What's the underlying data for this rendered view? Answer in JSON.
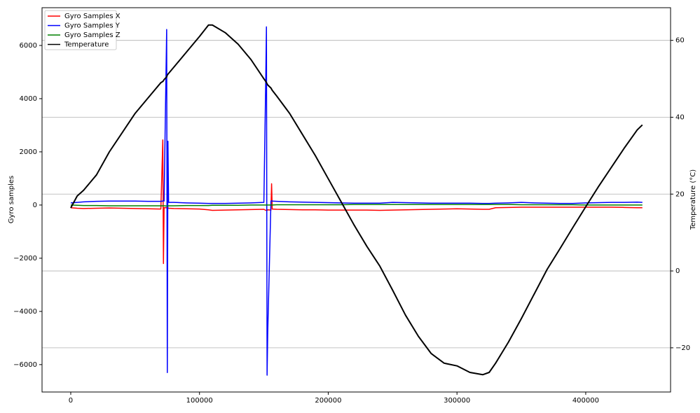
{
  "chart_data": {
    "type": "line",
    "x": [
      0,
      5000,
      10000,
      20000,
      30000,
      40000,
      50000,
      60000,
      70000,
      71500,
      72000,
      72500,
      74500,
      75000,
      75500,
      76000,
      80000,
      90000,
      100000,
      107000,
      110000,
      120000,
      130000,
      140000,
      150000,
      151500,
      152000,
      152500,
      153000,
      155500,
      156000,
      156500,
      160000,
      170000,
      180000,
      190000,
      200000,
      210000,
      220000,
      230000,
      240000,
      250000,
      260000,
      270000,
      280000,
      290000,
      300000,
      310000,
      320000,
      325000,
      330000,
      340000,
      350000,
      360000,
      370000,
      380000,
      390000,
      400000,
      410000,
      420000,
      430000,
      440000,
      444000
    ],
    "series": [
      {
        "name": "Gyro Samples X",
        "color": "#ff0000",
        "values": [
          -100,
          -120,
          -130,
          -120,
          -110,
          -120,
          -130,
          -140,
          -150,
          2450,
          -2200,
          -100,
          -100,
          -100,
          -100,
          -120,
          -130,
          -140,
          -150,
          -180,
          -200,
          -190,
          -180,
          -170,
          -160,
          -200,
          -200,
          -200,
          -180,
          -190,
          800,
          -150,
          -160,
          -170,
          -180,
          -180,
          -190,
          -190,
          -190,
          -190,
          -200,
          -190,
          -180,
          -170,
          -160,
          -150,
          -140,
          -150,
          -160,
          -160,
          -100,
          -90,
          -80,
          -80,
          -80,
          -80,
          -80,
          -80,
          -80,
          -80,
          -90,
          -100,
          -100
        ]
      },
      {
        "name": "Gyro Samples Y",
        "color": "#0000ff",
        "values": [
          80,
          100,
          120,
          140,
          150,
          150,
          150,
          140,
          140,
          150,
          160,
          150,
          6600,
          -6300,
          2400,
          100,
          100,
          80,
          70,
          60,
          60,
          60,
          70,
          80,
          100,
          4800,
          6700,
          -6400,
          -4800,
          150,
          160,
          150,
          140,
          120,
          110,
          100,
          90,
          80,
          70,
          70,
          70,
          100,
          90,
          80,
          70,
          70,
          70,
          70,
          60,
          60,
          70,
          80,
          100,
          80,
          70,
          60,
          60,
          80,
          90,
          100,
          100,
          110,
          100
        ]
      },
      {
        "name": "Gyro Samples Z",
        "color": "#008000",
        "values": [
          0,
          -10,
          -20,
          -20,
          -30,
          -30,
          -30,
          -30,
          -30,
          -30,
          -30,
          -30,
          -40,
          -40,
          -40,
          -30,
          -30,
          -20,
          -20,
          -20,
          -10,
          -10,
          -10,
          0,
          0,
          0,
          0,
          0,
          0,
          0,
          0,
          0,
          10,
          10,
          10,
          10,
          10,
          10,
          20,
          20,
          20,
          20,
          20,
          20,
          20,
          20,
          20,
          20,
          20,
          20,
          20,
          20,
          10,
          10,
          10,
          10,
          10,
          0,
          0,
          0,
          0,
          0,
          0
        ]
      },
      {
        "name": "Temperature",
        "color": "#000000",
        "axis": "y2",
        "values": [
          16.4,
          19.5,
          21,
          25,
          31,
          36,
          41,
          45,
          49,
          49.3,
          49.5,
          49.8,
          50.5,
          51,
          51.2,
          51.4,
          53,
          57,
          61,
          64,
          64,
          62,
          59,
          55,
          50,
          49.3,
          49,
          48.7,
          48.4,
          47.6,
          47.3,
          47,
          45.5,
          41,
          35.5,
          30,
          24,
          18,
          12,
          6.4,
          1.3,
          -5,
          -11.5,
          -17,
          -21.5,
          -24,
          -24.7,
          -26.4,
          -27,
          -26.4,
          -24,
          -18.5,
          -12.4,
          -6,
          0.4,
          5.8,
          11.3,
          16.7,
          22,
          27,
          32,
          36.7,
          38
        ]
      }
    ],
    "ylabel": "Gyro samples",
    "y2label": "Temperature (°C)",
    "xlim": [
      -22300,
      465900
    ],
    "xticks": [
      0,
      100000,
      200000,
      300000,
      400000
    ],
    "ylim": [
      -7030,
      7420
    ],
    "yticks": [
      {
        "value": -6000,
        "label": "−6000"
      },
      {
        "value": -4000,
        "label": "−4000"
      },
      {
        "value": -2000,
        "label": "−2000"
      },
      0,
      2000,
      4000,
      6000
    ],
    "y2lim": [
      -31.5,
      68.5
    ],
    "y2ticks": [
      {
        "value": -20,
        "label": "−20"
      },
      0,
      20,
      40,
      60
    ],
    "grid": "y2",
    "legend": "upper left"
  }
}
